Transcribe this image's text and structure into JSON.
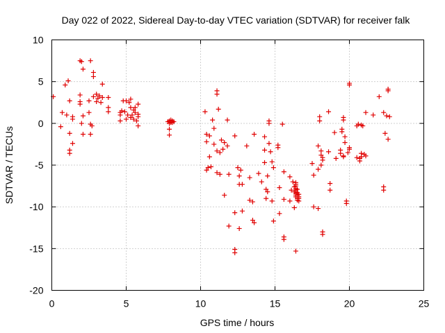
{
  "chart_data": {
    "type": "scatter",
    "title": "Day 022 of 2022, Sidereal Day-to-day VTEC variation (SDTVAR) for receiver falk",
    "xlabel": "GPS time / hours",
    "ylabel": "SDTVAR / TECUs",
    "xlim": [
      0,
      25
    ],
    "ylim": [
      -20,
      10
    ],
    "xticks": [
      0,
      5,
      10,
      15,
      20,
      25
    ],
    "yticks": [
      -20,
      -15,
      -10,
      -5,
      0,
      5,
      10
    ],
    "xtick_labels": [
      "0",
      "5",
      "10",
      "15",
      "20",
      "25"
    ],
    "ytick_labels": [
      "-20",
      "-15",
      "-10",
      "-5",
      "0",
      "5",
      "10"
    ],
    "grid": true,
    "marker": "plus",
    "series": [
      {
        "name": "SDTVAR",
        "color": "#e00000",
        "points": [
          [
            0.1,
            3.2
          ],
          [
            0.6,
            -0.4
          ],
          [
            0.7,
            1.3
          ],
          [
            0.9,
            4.6
          ],
          [
            1.0,
            1.0
          ],
          [
            1.1,
            5.1
          ],
          [
            1.2,
            -1.2
          ],
          [
            1.2,
            -3.2
          ],
          [
            1.2,
            -3.6
          ],
          [
            1.2,
            2.7
          ],
          [
            1.4,
            0.8
          ],
          [
            1.4,
            0.5
          ],
          [
            1.4,
            -2.4
          ],
          [
            1.9,
            2.6
          ],
          [
            1.9,
            2.3
          ],
          [
            1.9,
            3.4
          ],
          [
            1.9,
            7.5
          ],
          [
            2.0,
            7.4
          ],
          [
            2.0,
            0.0
          ],
          [
            2.1,
            -1.3
          ],
          [
            2.1,
            0.9
          ],
          [
            2.1,
            6.5
          ],
          [
            2.5,
            2.7
          ],
          [
            2.5,
            1.3
          ],
          [
            2.6,
            7.5
          ],
          [
            2.6,
            -0.1
          ],
          [
            2.6,
            -1.3
          ],
          [
            2.7,
            -0.3
          ],
          [
            2.8,
            6.1
          ],
          [
            2.8,
            5.6
          ],
          [
            2.8,
            3.2
          ],
          [
            3.0,
            3.5
          ],
          [
            3.0,
            2.6
          ],
          [
            3.1,
            3.0
          ],
          [
            3.2,
            3.3
          ],
          [
            3.3,
            2.5
          ],
          [
            3.4,
            4.7
          ],
          [
            3.4,
            3.1
          ],
          [
            3.8,
            3.1
          ],
          [
            3.8,
            1.9
          ],
          [
            3.8,
            1.4
          ],
          [
            4.6,
            1.3
          ],
          [
            4.6,
            1.0
          ],
          [
            4.6,
            0.3
          ],
          [
            4.7,
            1.5
          ],
          [
            4.8,
            2.7
          ],
          [
            4.9,
            1.4
          ],
          [
            5.0,
            2.7
          ],
          [
            5.0,
            0.5
          ],
          [
            5.1,
            1.0
          ],
          [
            5.2,
            2.5
          ],
          [
            5.3,
            2.9
          ],
          [
            5.3,
            1.9
          ],
          [
            5.3,
            0.7
          ],
          [
            5.4,
            1.0
          ],
          [
            5.5,
            1.6
          ],
          [
            5.5,
            0.5
          ],
          [
            5.6,
            1.9
          ],
          [
            5.6,
            1.3
          ],
          [
            5.7,
            0.3
          ],
          [
            5.8,
            2.3
          ],
          [
            5.8,
            1.1
          ],
          [
            5.8,
            0.8
          ],
          [
            5.8,
            -0.3
          ],
          [
            7.8,
            0.2
          ],
          [
            7.9,
            0.3
          ],
          [
            7.9,
            0.0
          ],
          [
            7.9,
            -0.7
          ],
          [
            7.9,
            -1.4
          ],
          [
            8.0,
            0.4
          ],
          [
            8.0,
            0.1
          ],
          [
            8.1,
            0.3
          ],
          [
            8.1,
            0.1
          ],
          [
            8.2,
            0.2
          ],
          [
            10.3,
            1.4
          ],
          [
            10.4,
            -1.3
          ],
          [
            10.4,
            -2.2
          ],
          [
            10.4,
            -5.6
          ],
          [
            10.5,
            -5.3
          ],
          [
            10.6,
            -1.5
          ],
          [
            10.6,
            -4.0
          ],
          [
            10.7,
            -5.2
          ],
          [
            10.8,
            0.4
          ],
          [
            10.9,
            -0.6
          ],
          [
            10.9,
            -2.5
          ],
          [
            11.1,
            3.9
          ],
          [
            11.1,
            3.5
          ],
          [
            11.1,
            -3.3
          ],
          [
            11.1,
            -5.9
          ],
          [
            11.2,
            1.7
          ],
          [
            11.3,
            -3.5
          ],
          [
            11.3,
            -6.1
          ],
          [
            11.4,
            -2.0
          ],
          [
            11.5,
            -3.1
          ],
          [
            11.6,
            -2.3
          ],
          [
            11.6,
            -8.6
          ],
          [
            11.8,
            0.4
          ],
          [
            11.8,
            -2.7
          ],
          [
            11.9,
            -6.1
          ],
          [
            11.9,
            -12.3
          ],
          [
            12.3,
            -1.5
          ],
          [
            12.3,
            -10.7
          ],
          [
            12.3,
            -15.1
          ],
          [
            12.3,
            -15.5
          ],
          [
            12.5,
            -5.3
          ],
          [
            12.6,
            -6.3
          ],
          [
            12.6,
            -7.3
          ],
          [
            12.6,
            -12.6
          ],
          [
            12.7,
            -5.6
          ],
          [
            12.8,
            -7.3
          ],
          [
            12.8,
            -10.5
          ],
          [
            13.1,
            -2.7
          ],
          [
            13.3,
            -6.5
          ],
          [
            13.3,
            -9.2
          ],
          [
            13.5,
            -9.4
          ],
          [
            13.5,
            -11.6
          ],
          [
            13.6,
            -11.9
          ],
          [
            13.6,
            -1.3
          ],
          [
            13.9,
            -6.0
          ],
          [
            14.1,
            -7.0
          ],
          [
            14.3,
            -1.6
          ],
          [
            14.3,
            -3.2
          ],
          [
            14.3,
            -4.7
          ],
          [
            14.4,
            -7.9
          ],
          [
            14.4,
            -9.0
          ],
          [
            14.5,
            -8.2
          ],
          [
            14.5,
            -6.3
          ],
          [
            14.6,
            -2.4
          ],
          [
            14.6,
            0.3
          ],
          [
            14.6,
            0.0
          ],
          [
            14.7,
            -3.4
          ],
          [
            14.8,
            -4.6
          ],
          [
            14.8,
            -9.3
          ],
          [
            14.9,
            -5.3
          ],
          [
            14.9,
            -11.7
          ],
          [
            15.2,
            -2.6
          ],
          [
            15.2,
            -2.9
          ],
          [
            15.3,
            -7.7
          ],
          [
            15.3,
            -10.8
          ],
          [
            15.5,
            -0.1
          ],
          [
            15.6,
            -5.8
          ],
          [
            15.6,
            -9.1
          ],
          [
            15.6,
            -13.6
          ],
          [
            15.6,
            -13.9
          ],
          [
            16.0,
            -6.4
          ],
          [
            16.0,
            -9.3
          ],
          [
            16.1,
            -8.0
          ],
          [
            16.2,
            -7.0
          ],
          [
            16.3,
            -7.6
          ],
          [
            16.3,
            -8.2
          ],
          [
            16.3,
            -10.1
          ],
          [
            16.4,
            -7.1
          ],
          [
            16.4,
            -7.3
          ],
          [
            16.4,
            -7.5
          ],
          [
            16.4,
            -7.8
          ],
          [
            16.4,
            -8.0
          ],
          [
            16.4,
            -8.2
          ],
          [
            16.4,
            -8.4
          ],
          [
            16.4,
            -8.6
          ],
          [
            16.4,
            -8.8
          ],
          [
            16.4,
            -15.3
          ],
          [
            16.5,
            -7.9
          ],
          [
            16.5,
            -8.3
          ],
          [
            16.5,
            -8.6
          ],
          [
            16.5,
            -9.0
          ],
          [
            16.5,
            -9.2
          ],
          [
            16.6,
            -8.5
          ],
          [
            16.6,
            -8.8
          ],
          [
            16.6,
            -9.3
          ],
          [
            16.6,
            -9.0
          ],
          [
            17.5,
            -4.8
          ],
          [
            17.6,
            -10.0
          ],
          [
            17.6,
            -6.2
          ],
          [
            17.9,
            -2.7
          ],
          [
            17.9,
            -5.5
          ],
          [
            17.9,
            -10.2
          ],
          [
            18.0,
            0.8
          ],
          [
            18.0,
            0.3
          ],
          [
            18.1,
            -3.3
          ],
          [
            18.1,
            -3.8
          ],
          [
            18.1,
            -5.0
          ],
          [
            18.2,
            -4.1
          ],
          [
            18.2,
            -4.4
          ],
          [
            18.2,
            -13.0
          ],
          [
            18.2,
            -13.3
          ],
          [
            18.6,
            1.4
          ],
          [
            18.6,
            -3.4
          ],
          [
            18.7,
            -7.2
          ],
          [
            18.7,
            -8.0
          ],
          [
            19.0,
            -1.1
          ],
          [
            19.1,
            -4.2
          ],
          [
            19.4,
            -3.6
          ],
          [
            19.4,
            -3.2
          ],
          [
            19.5,
            -0.7
          ],
          [
            19.5,
            -1.0
          ],
          [
            19.6,
            0.7
          ],
          [
            19.6,
            0.4
          ],
          [
            19.6,
            -3.9
          ],
          [
            19.6,
            -4.0
          ],
          [
            19.7,
            -1.6
          ],
          [
            19.7,
            -2.3
          ],
          [
            19.8,
            -9.3
          ],
          [
            19.8,
            -9.6
          ],
          [
            19.9,
            -3.5
          ],
          [
            20.0,
            -2.9
          ],
          [
            20.0,
            4.8
          ],
          [
            20.0,
            4.6
          ],
          [
            20.0,
            -3.1
          ],
          [
            20.5,
            -4.1
          ],
          [
            20.5,
            -0.3
          ],
          [
            20.6,
            -0.1
          ],
          [
            20.7,
            -4.2
          ],
          [
            20.7,
            -4.5
          ],
          [
            20.8,
            -4.0
          ],
          [
            20.8,
            -0.2
          ],
          [
            20.8,
            -3.6
          ],
          [
            20.9,
            -0.3
          ],
          [
            21.0,
            -3.7
          ],
          [
            21.1,
            1.3
          ],
          [
            21.1,
            -3.9
          ],
          [
            21.6,
            1.0
          ],
          [
            22.0,
            3.2
          ],
          [
            22.3,
            -7.6
          ],
          [
            22.3,
            -8.0
          ],
          [
            22.3,
            1.3
          ],
          [
            22.4,
            -1.2
          ],
          [
            22.5,
            0.9
          ],
          [
            22.6,
            3.9
          ],
          [
            22.6,
            4.1
          ],
          [
            22.6,
            -1.9
          ],
          [
            22.7,
            0.8
          ]
        ]
      }
    ]
  }
}
